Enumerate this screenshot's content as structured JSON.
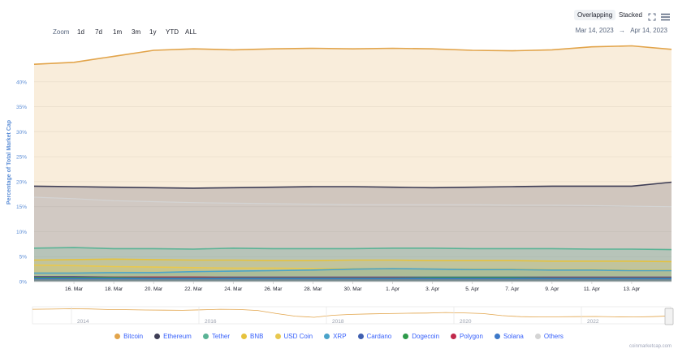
{
  "toolbar": {
    "zoom_label": "Zoom",
    "zoom_options": [
      "1d",
      "7d",
      "1m",
      "3m",
      "1y",
      "YTD",
      "ALL"
    ],
    "view_overlapping": "Overlapping",
    "view_stacked": "Stacked",
    "range_from": "Mar 14, 2023",
    "range_arrow": "→",
    "range_to": "Apr 14, 2023"
  },
  "credit": "coinmarketcap.com",
  "colors": {
    "bitcoin": "#e2a44a",
    "ethereum": "#3e3d55",
    "tether": "#5ab395",
    "bnb": "#e6c23c",
    "usd_coin": "#e8c84e",
    "xrp": "#4aa3c9",
    "cardano": "#3f5fb0",
    "dogecoin": "#2d9a4a",
    "polygon": "#c0284b",
    "solana": "#3c78c8",
    "others": "#d4d4d4"
  },
  "chart_data": {
    "type": "area",
    "ylabel": "Percentage of Total Market Cap",
    "yticks": [
      "0%",
      "5%",
      "10%",
      "15%",
      "20%",
      "25%",
      "30%",
      "35%",
      "40%"
    ],
    "ylim": [
      0,
      45
    ],
    "x": [
      "15 Mar",
      "16 Mar",
      "18 Mar",
      "20 Mar",
      "22 Mar",
      "24 Mar",
      "26 Mar",
      "28 Mar",
      "30 Mar",
      "1 Apr",
      "3 Apr",
      "5 Apr",
      "7 Apr",
      "9 Apr",
      "11 Apr",
      "13 Apr",
      "14 Apr"
    ],
    "xticks": [
      "16. Mar",
      "18. Mar",
      "20. Mar",
      "22. Mar",
      "24. Mar",
      "26. Mar",
      "28. Mar",
      "30. Mar",
      "1. Apr",
      "3. Apr",
      "5. Apr",
      "7. Apr",
      "9. Apr",
      "11. Apr",
      "13. Apr"
    ],
    "grid": true,
    "legend_position": "bottom",
    "series": [
      {
        "name": "Bitcoin",
        "color": "#e2a44a",
        "values": [
          43.5,
          43.9,
          45.1,
          46.3,
          46.6,
          46.4,
          46.6,
          46.7,
          46.6,
          46.7,
          46.6,
          46.3,
          46.2,
          46.4,
          47.0,
          47.2,
          46.5
        ]
      },
      {
        "name": "Ethereum",
        "color": "#3e3d55",
        "values": [
          19.1,
          19.0,
          18.9,
          18.8,
          18.7,
          18.8,
          18.9,
          19.0,
          19.0,
          18.9,
          18.8,
          18.9,
          19.0,
          19.1,
          19.1,
          19.1,
          19.9
        ]
      },
      {
        "name": "Tether",
        "color": "#5ab395",
        "values": [
          6.7,
          6.8,
          6.6,
          6.6,
          6.5,
          6.7,
          6.6,
          6.6,
          6.6,
          6.7,
          6.7,
          6.6,
          6.6,
          6.6,
          6.5,
          6.5,
          6.4
        ]
      },
      {
        "name": "BNB",
        "color": "#e6c23c",
        "values": [
          4.3,
          4.4,
          4.5,
          4.4,
          4.3,
          4.3,
          4.2,
          4.2,
          4.3,
          4.3,
          4.2,
          4.2,
          4.2,
          4.1,
          4.1,
          4.1,
          4.0
        ]
      },
      {
        "name": "USD Coin",
        "color": "#e8c84e",
        "values": [
          3.3,
          3.2,
          3.0,
          2.9,
          2.8,
          2.7,
          2.7,
          2.6,
          2.6,
          2.6,
          2.5,
          2.5,
          2.5,
          2.4,
          2.4,
          2.3,
          2.3
        ]
      },
      {
        "name": "XRP",
        "color": "#4aa3c9",
        "values": [
          1.7,
          1.7,
          1.8,
          1.8,
          2.0,
          2.1,
          2.2,
          2.3,
          2.5,
          2.6,
          2.5,
          2.4,
          2.4,
          2.3,
          2.3,
          2.2,
          2.2
        ]
      },
      {
        "name": "Cardano",
        "color": "#3f5fb0",
        "values": [
          1.0,
          1.0,
          0.9,
          0.9,
          0.9,
          0.9,
          0.9,
          0.9,
          0.9,
          0.9,
          0.9,
          0.9,
          0.9,
          0.9,
          0.9,
          0.9,
          0.9
        ]
      },
      {
        "name": "Dogecoin",
        "color": "#2d9a4a",
        "values": [
          0.8,
          0.8,
          0.8,
          0.7,
          0.7,
          0.7,
          0.7,
          0.7,
          0.7,
          0.7,
          0.8,
          0.8,
          0.8,
          0.7,
          0.7,
          0.7,
          0.7
        ]
      },
      {
        "name": "Polygon",
        "color": "#c0284b",
        "values": [
          0.9,
          0.9,
          0.9,
          0.9,
          0.9,
          0.8,
          0.8,
          0.8,
          0.8,
          0.8,
          0.8,
          0.8,
          0.8,
          0.8,
          0.8,
          0.8,
          0.8
        ]
      },
      {
        "name": "Solana",
        "color": "#3c78c8",
        "values": [
          0.6,
          0.6,
          0.6,
          0.6,
          0.6,
          0.6,
          0.6,
          0.6,
          0.6,
          0.6,
          0.6,
          0.6,
          0.6,
          0.6,
          0.6,
          0.6,
          0.6
        ]
      },
      {
        "name": "Others",
        "color": "#d4d4d4",
        "values": [
          16.9,
          16.6,
          16.2,
          16.0,
          15.8,
          15.7,
          15.6,
          15.5,
          15.4,
          15.4,
          15.4,
          15.4,
          15.3,
          15.3,
          15.2,
          15.1,
          15.0
        ]
      }
    ],
    "navigator": {
      "x_labels": [
        "2014",
        "2016",
        "2018",
        "2020",
        "2022"
      ],
      "bitcoin_values": [
        85,
        86,
        88,
        87,
        84,
        83,
        81,
        80,
        79,
        82,
        85,
        84,
        78,
        60,
        45,
        38,
        50,
        55,
        58,
        60,
        62,
        63,
        66,
        64,
        60,
        48,
        42,
        40,
        41,
        42,
        43,
        41,
        40,
        42,
        46
      ]
    }
  }
}
